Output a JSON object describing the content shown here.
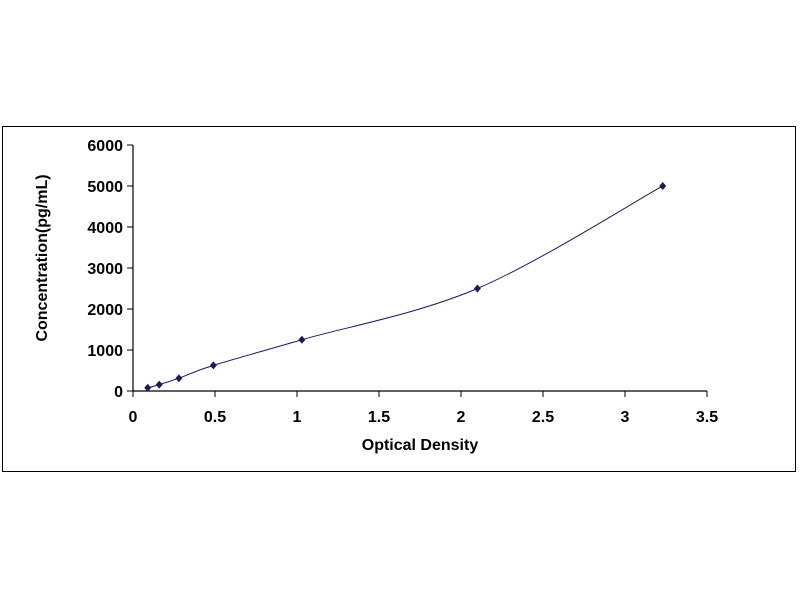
{
  "chart_data": {
    "type": "scatter",
    "title": "",
    "xlabel": "Optical Density",
    "ylabel": "Concentration(pg/mL)",
    "xlim": [
      0,
      3.5
    ],
    "ylim": [
      0,
      6000
    ],
    "xticks": [
      "0",
      "0.5",
      "1",
      "1.5",
      "2",
      "2.5",
      "3",
      "3.5"
    ],
    "yticks": [
      "0",
      "1000",
      "2000",
      "3000",
      "4000",
      "5000",
      "6000"
    ],
    "grid": false,
    "legend": "none",
    "series": [
      {
        "x": [
          0.09,
          0.16,
          0.28,
          0.49,
          1.03,
          2.1,
          3.23
        ],
        "y": [
          78,
          156,
          312,
          625,
          1250,
          2500,
          5000
        ],
        "marker": "diamond",
        "color": "#1a1a5e",
        "smooth_line": true
      }
    ]
  }
}
